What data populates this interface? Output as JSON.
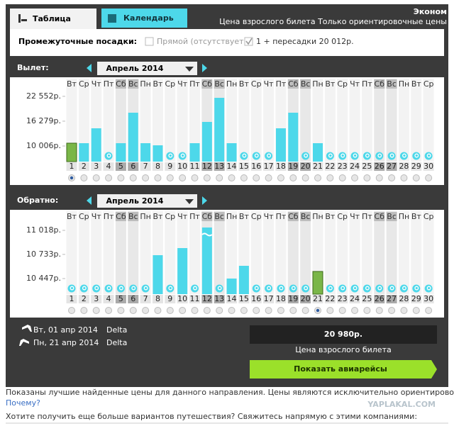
{
  "tabs": [
    "Таблица",
    "Календарь"
  ],
  "header": {
    "class": "Эконом",
    "note": "Цена взрослого билета Только ориентировочные цены"
  },
  "filters": {
    "label": "Промежуточные посадки:",
    "options": [
      "Прямой (отсутствует)",
      "1 + пересадки 20 012р."
    ]
  },
  "charts": [
    {
      "label": "Вылет:",
      "month": "Апрель 2014",
      "weekdays": [
        "Вт",
        "Ср",
        "Чт",
        "Пт",
        "Сб",
        "Вс",
        "Пн",
        "Вт",
        "Ср",
        "Чт",
        "Пт",
        "Сб",
        "Вс",
        "Пн",
        "Вт",
        "Ср",
        "Чт",
        "Пт",
        "Сб",
        "Вс",
        "Пн",
        "Вт",
        "Ср",
        "Чт",
        "Пт",
        "Сб",
        "Вс",
        "Пн",
        "Вт",
        "Ср"
      ],
      "days": [
        1,
        2,
        3,
        4,
        5,
        6,
        7,
        8,
        9,
        10,
        11,
        12,
        13,
        14,
        15,
        16,
        17,
        18,
        19,
        20,
        21,
        22,
        23,
        24,
        25,
        26,
        27,
        28,
        29,
        30
      ],
      "ylim": [
        6068,
        25758
      ],
      "yticks": [
        {
          "value": 22552,
          "label": "22 552р."
        },
        {
          "value": 16279,
          "label": "16 279р."
        },
        {
          "value": 10006,
          "label": "10 006р."
        }
      ],
      "values": [
        10722,
        10722,
        14481,
        null,
        10722,
        18419,
        10722,
        10185,
        null,
        null,
        10722,
        16092,
        22178,
        10722,
        null,
        null,
        null,
        14481,
        18419,
        null,
        10722,
        null,
        null,
        null,
        null,
        null,
        null,
        null,
        null,
        null
      ],
      "selected_day": 1
    },
    {
      "label": "Обратно:",
      "month": "Апрель 2014",
      "weekdays": [
        "Вт",
        "Ср",
        "Чт",
        "Пт",
        "Сб",
        "Вс",
        "Пн",
        "Вт",
        "Ср",
        "Чт",
        "Пт",
        "Сб",
        "Вс",
        "Пн",
        "Вт",
        "Ср",
        "Чт",
        "Пт",
        "Сб",
        "Вс",
        "Пн",
        "Вт",
        "Ср",
        "Чт",
        "Пт",
        "Сб",
        "Вс",
        "Пн",
        "Вт",
        "Ср"
      ],
      "days": [
        1,
        2,
        3,
        4,
        5,
        6,
        7,
        8,
        9,
        10,
        11,
        12,
        13,
        14,
        15,
        16,
        17,
        18,
        19,
        20,
        21,
        22,
        23,
        24,
        25,
        26,
        27,
        28,
        29,
        30
      ],
      "ylim": [
        10262,
        11186
      ],
      "yticks": [
        {
          "value": 11018,
          "label": "11 018р."
        },
        {
          "value": 10733,
          "label": "10 733р."
        },
        {
          "value": 10447,
          "label": "10 447р."
        }
      ],
      "values": [
        null,
        null,
        null,
        null,
        null,
        null,
        null,
        10724,
        null,
        10808,
        null,
        11052,
        null,
        10447,
        10598,
        null,
        null,
        null,
        null,
        null,
        10531,
        null,
        null,
        null,
        null,
        null,
        null,
        null,
        null,
        null
      ],
      "selected_day": 21
    }
  ],
  "summary": {
    "flights": [
      {
        "date": "Вт, 01 апр 2014",
        "airline": "Delta"
      },
      {
        "date": "Пн, 21 апр 2014",
        "airline": "Delta"
      }
    ],
    "price": "20 980р.",
    "price_label": "Цена взрослого билета",
    "button": "Показать авиарейсы"
  },
  "footer": {
    "note": "Показаны лучшие найденные цены для данного направления. Цены являются исключительно ориентировочными.",
    "link": "Почему?",
    "contact": "Хотите получить еще больше вариантов путешествия? Свяжитесь напрямую с этими компаниями:",
    "watermark": "YAPLAKAL.COM"
  }
}
